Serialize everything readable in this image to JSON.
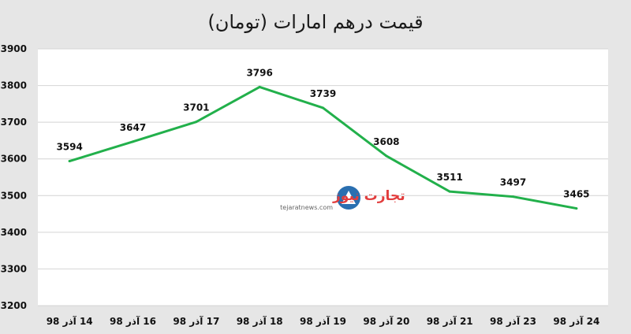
{
  "chart_data": {
    "type": "line",
    "title": "قیمت درهم امارات (تومان)",
    "categories": [
      "14 آذر 98",
      "16 آذر 98",
      "17 آذر 98",
      "18 آذر 98",
      "19 آذر 98",
      "20 آذر 98",
      "21 آذر 98",
      "23 آذر 98",
      "24 آذر 98"
    ],
    "series": [
      {
        "values": [
          3594,
          3647,
          3701,
          3796,
          3739,
          3608,
          3511,
          3497,
          3465
        ]
      }
    ],
    "ylim": [
      3200,
      3900
    ],
    "yticks": [
      3200,
      3300,
      3400,
      3500,
      3600,
      3700,
      3800,
      3900
    ],
    "grid": true,
    "legend": "none",
    "line_color": "#22b04b"
  },
  "watermark": {
    "brand_text": "تجارت نیوز",
    "url_text": "tejaratnews.com"
  }
}
